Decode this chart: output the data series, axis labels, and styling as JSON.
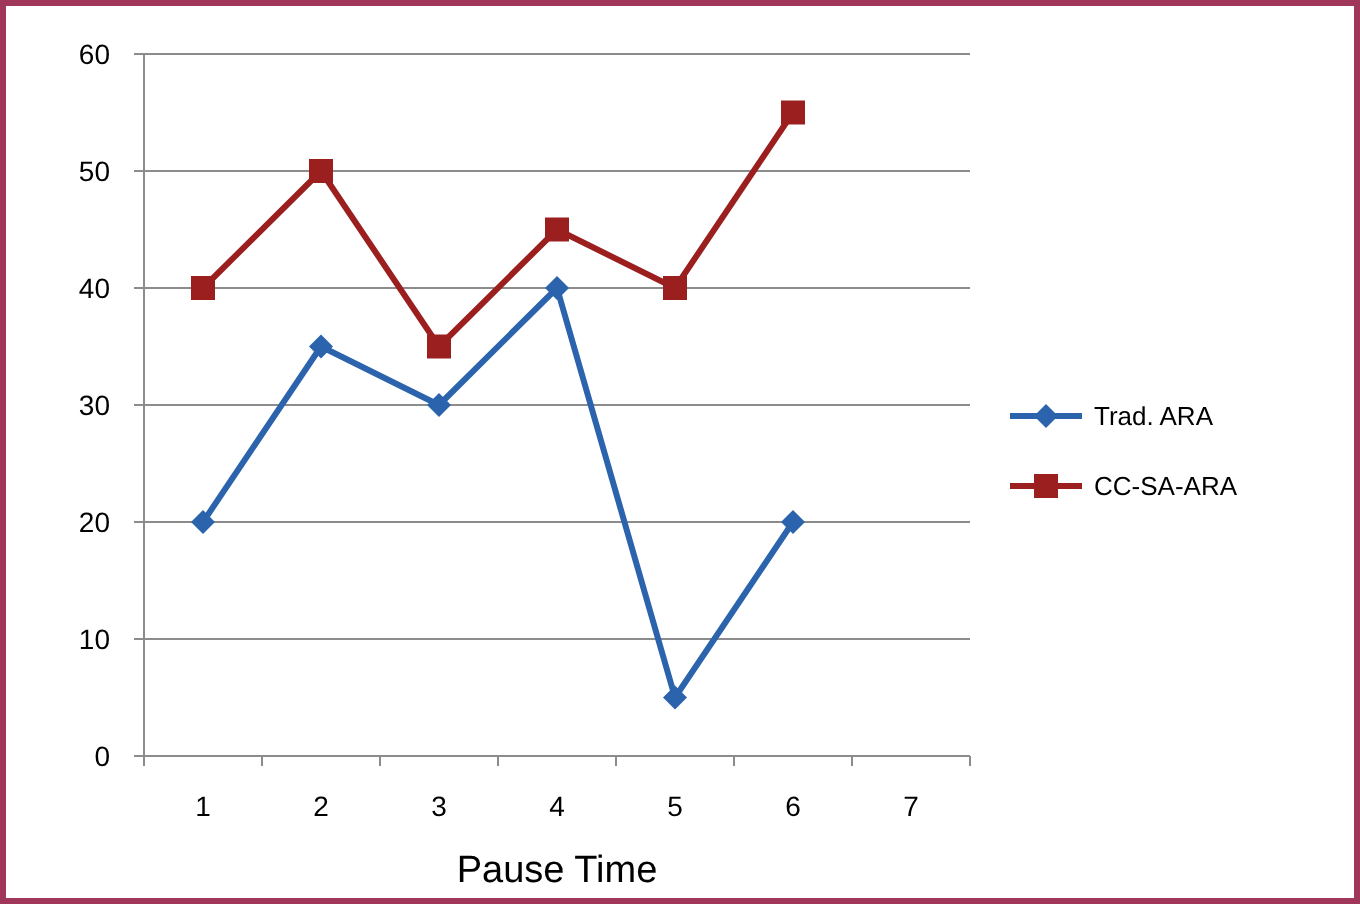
{
  "chart_data": {
    "type": "line",
    "xlabel": "Pause Time",
    "categories": [
      "1",
      "2",
      "3",
      "4",
      "5",
      "6",
      "7"
    ],
    "series": [
      {
        "name": "Trad. ARA",
        "color": "#2b64ad",
        "marker": "diamond",
        "values": [
          20,
          35,
          30,
          40,
          5,
          20,
          null
        ]
      },
      {
        "name": "CC-SA-ARA",
        "color": "#9c1f1f",
        "marker": "square",
        "values": [
          40,
          50,
          35,
          45,
          40,
          55,
          null
        ]
      }
    ],
    "ylim": [
      0,
      60
    ],
    "yticks": [
      0,
      10,
      20,
      30,
      40,
      50,
      60
    ],
    "grid": "y",
    "legend": "right"
  }
}
